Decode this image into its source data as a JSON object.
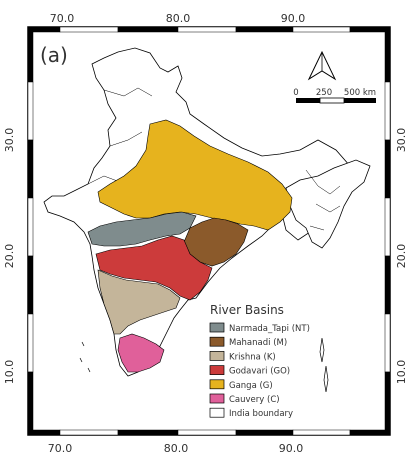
{
  "panel_label": "(a)",
  "axes": {
    "x_ticks": [
      "70.0",
      "80.0",
      "90.0"
    ],
    "y_ticks": [
      "30.0",
      "20.0",
      "10.0"
    ]
  },
  "scale_bar": {
    "labels": [
      "0",
      "250",
      "500 km"
    ],
    "north_label": "N"
  },
  "legend": {
    "title": "River Basins",
    "items": [
      {
        "label": "Narmada_Tapi (NT)",
        "color": "#7f8c8d"
      },
      {
        "label": "Mahanadi (M)",
        "color": "#8b5a2b"
      },
      {
        "label": "Krishna (K)",
        "color": "#c4b59a"
      },
      {
        "label": "Godavari (GO)",
        "color": "#cc3b3b"
      },
      {
        "label": "Ganga (G)",
        "color": "#e6b31e"
      },
      {
        "label": "Cauvery (C)",
        "color": "#e0609a"
      },
      {
        "label": "India boundary",
        "color": "#ffffff"
      }
    ]
  }
}
